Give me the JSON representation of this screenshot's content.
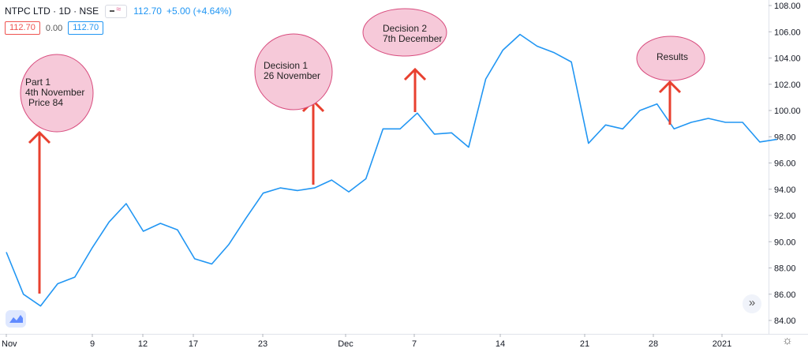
{
  "header": {
    "symbol": "NTPC LTD · 1D · NSE",
    "last_price": "112.70",
    "change": "+5.00 (+4.64%)",
    "open_value": "112.70",
    "mid_value": "0.00",
    "close_value": "112.70"
  },
  "colors": {
    "line": "#2196f3",
    "arrow": "#e8402f",
    "bubble_fill": "#f6c9d9",
    "bubble_stroke": "#d84c7e"
  },
  "chart_data": {
    "type": "line",
    "title": "",
    "xlabel": "",
    "ylabel": "",
    "ylim": [
      83,
      108.4
    ],
    "y_ticks": [
      "84.00",
      "86.00",
      "88.00",
      "90.00",
      "92.00",
      "94.00",
      "96.00",
      "98.00",
      "100.00",
      "102.00",
      "104.00",
      "106.00",
      "108.00"
    ],
    "x_ticks": [
      "Nov",
      "9",
      "12",
      "17",
      "23",
      "Dec",
      "7",
      "14",
      "21",
      "28",
      "2021"
    ],
    "grid": false,
    "series": [
      {
        "values": [
          89.2,
          86.0,
          85.1,
          86.8,
          87.3,
          89.5,
          91.5,
          92.9,
          90.8,
          91.4,
          90.9,
          88.7,
          88.3,
          89.8,
          91.8,
          93.7,
          94.1,
          93.9,
          94.1,
          94.7,
          93.8,
          94.8,
          98.6,
          98.6,
          99.8,
          98.2,
          98.3,
          97.2,
          102.4,
          104.6,
          105.8,
          104.9,
          104.4,
          103.7,
          97.5,
          98.9,
          98.6,
          100.0,
          100.5,
          98.6,
          99.1,
          99.4,
          99.1,
          99.1,
          97.6,
          97.8
        ]
      }
    ],
    "annotations": [
      {
        "lines": [
          "Part 1",
          "4th November",
          "Price 84"
        ]
      },
      {
        "lines": [
          "Decision 1",
          "26 November"
        ]
      },
      {
        "lines": [
          "Decision 2",
          "7th December"
        ]
      },
      {
        "lines": [
          "Results"
        ]
      }
    ]
  }
}
